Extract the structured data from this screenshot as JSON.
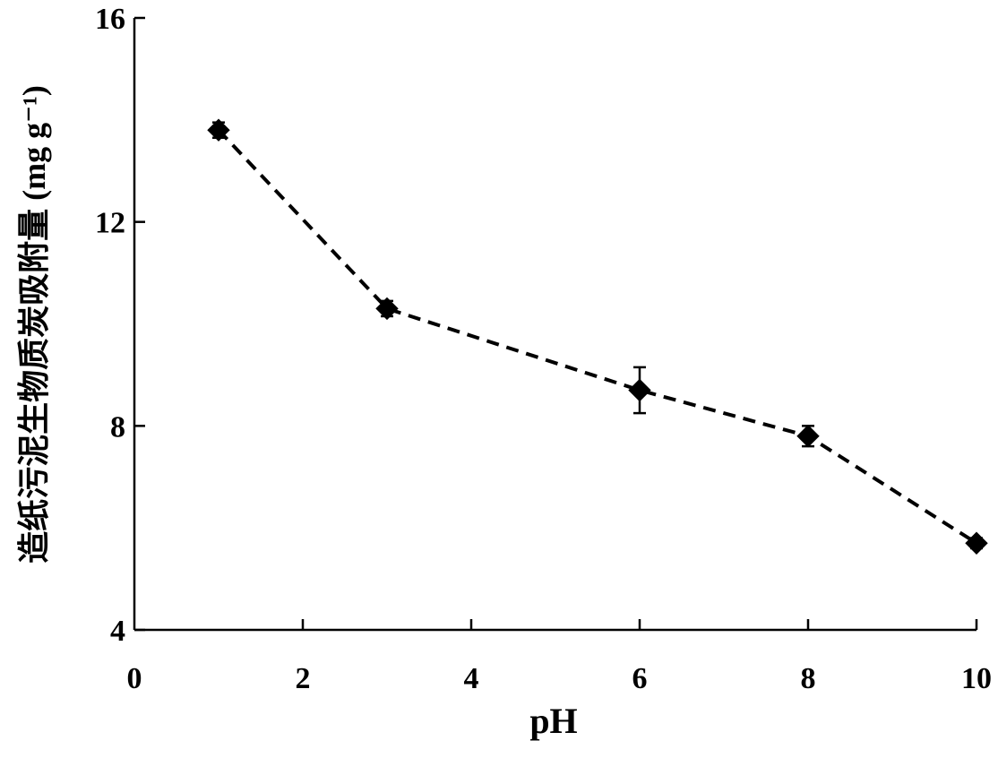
{
  "chart_data": {
    "type": "scatter",
    "title": "",
    "xlabel": "pH",
    "ylabel": "造纸污泥生物质炭吸附量 (mg g⁻¹)",
    "xlim": [
      0,
      10
    ],
    "ylim": [
      4,
      16
    ],
    "x_ticks": [
      "0",
      "2",
      "4",
      "6",
      "8",
      "10"
    ],
    "y_ticks": [
      "4",
      "8",
      "12",
      "16"
    ],
    "grid": false,
    "legend": "none",
    "series": [
      {
        "x": [
          1,
          3,
          6,
          8,
          10
        ],
        "y": [
          13.8,
          10.3,
          8.7,
          7.8,
          5.7
        ],
        "error": [
          0.15,
          0.15,
          0.45,
          0.2,
          0.1
        ],
        "marker": "diamond",
        "line_style": "dashed",
        "color": "#000000"
      }
    ]
  }
}
